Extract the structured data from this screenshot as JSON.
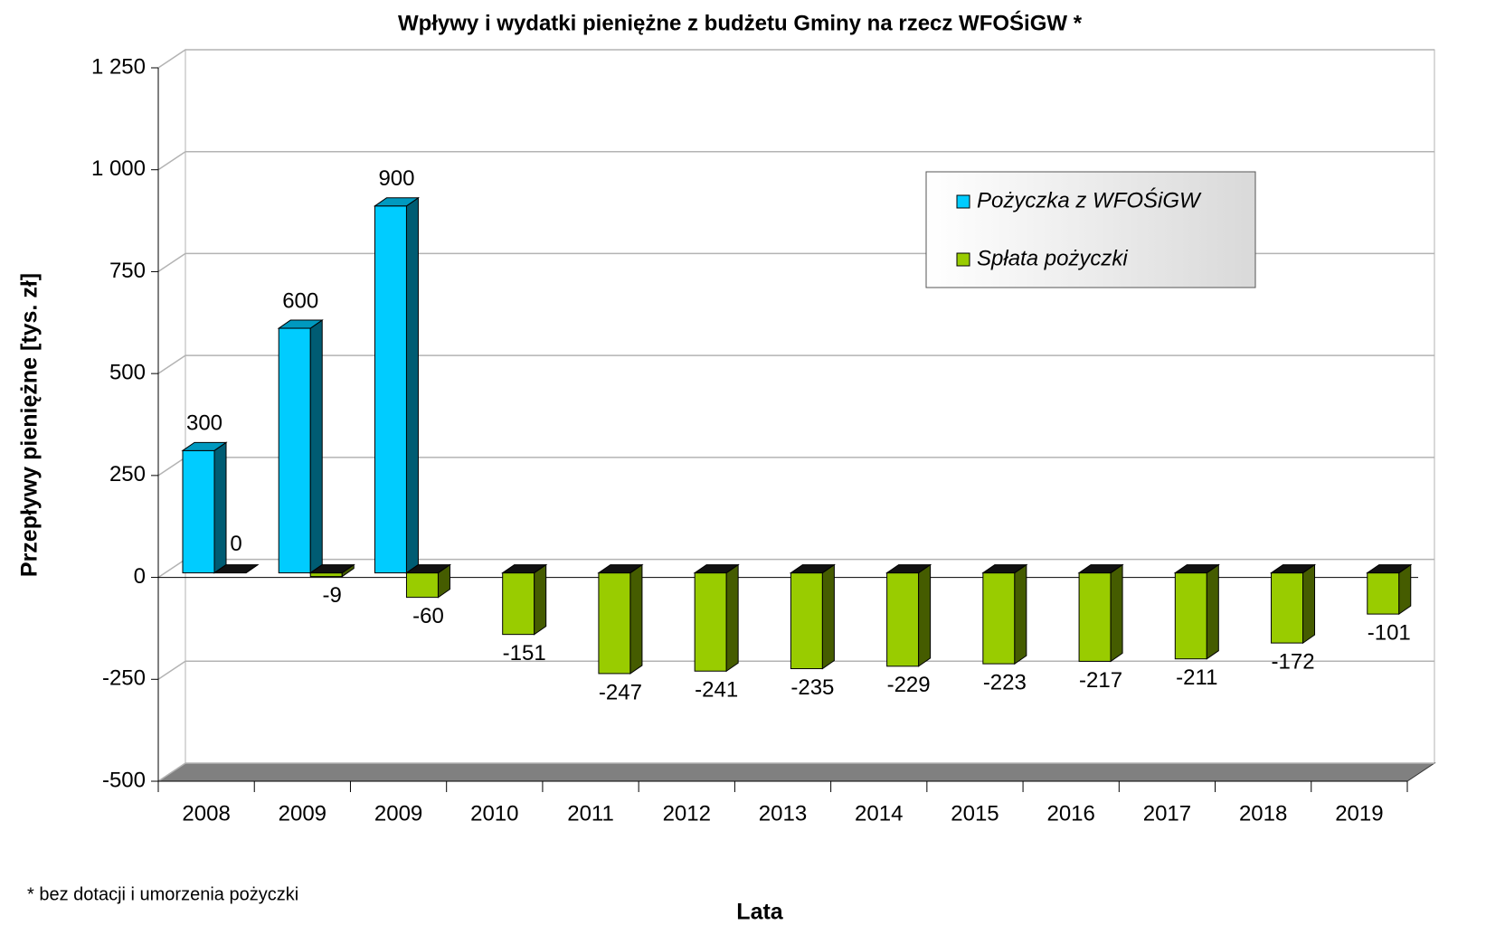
{
  "chart_data": {
    "type": "bar3d",
    "title": "Wpływy i wydatki pieniężne z budżetu Gminy na rzecz WFOŚiGW *",
    "x_label": "Lata",
    "y_label": "Przepływy pieniężne [tys. zł]",
    "annotation": "* bez dotacji i umorzenia pożyczki",
    "categories": [
      "2008",
      "2009",
      "2009",
      "2010",
      "2011",
      "2012",
      "2013",
      "2014",
      "2015",
      "2016",
      "2017",
      "2018",
      "2019"
    ],
    "series": [
      {
        "name": "Pożyczka z WFOŚiGW",
        "color": "#00ccff",
        "values": [
          300,
          600,
          900,
          null,
          null,
          null,
          null,
          null,
          null,
          null,
          null,
          null,
          null
        ]
      },
      {
        "name": "Spłata pożyczki",
        "color": "#99cc00",
        "values": [
          0,
          -9,
          -60,
          -151,
          -247,
          -241,
          -235,
          -229,
          -223,
          -217,
          -211,
          -172,
          -101
        ]
      }
    ],
    "ylim": [
      -500,
      1250
    ],
    "yticks": [
      {
        "value": -500,
        "label": "-500"
      },
      {
        "value": -250,
        "label": "-250"
      },
      0,
      250,
      500,
      750,
      {
        "value": 1000,
        "label": "1 000"
      },
      {
        "value": 1250,
        "label": "1 250"
      }
    ],
    "grid": true,
    "legend": "top right"
  }
}
